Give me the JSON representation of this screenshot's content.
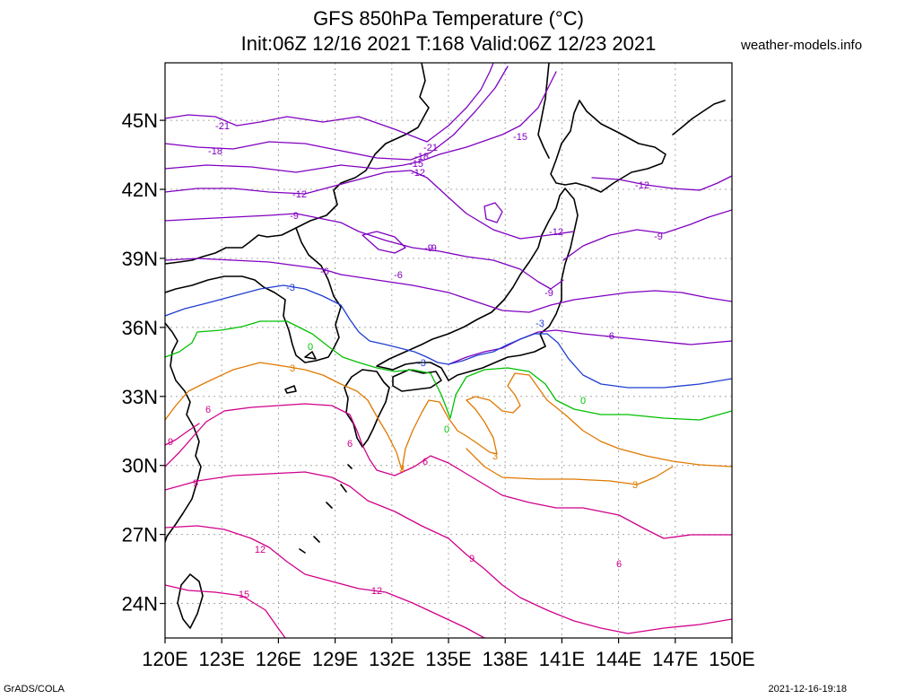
{
  "header": {
    "title_line1": "GFS 850hPa Temperature (°C)",
    "title_line2": "Init:06Z 12/16 2021 T:168 Valid:06Z 12/23 2021",
    "credit": "weather-models.info"
  },
  "footer": {
    "left": "GrADS/COLA",
    "right": "2021-12-16-19:18"
  },
  "map_data": {
    "lon_range": [
      120,
      150
    ],
    "lat_range": [
      22.5,
      47.5
    ],
    "grid": "dotted",
    "x_ticks": [
      "120E",
      "123E",
      "126E",
      "129E",
      "132E",
      "135E",
      "138E",
      "141E",
      "144E",
      "147E",
      "150E"
    ],
    "y_ticks": [
      "45N",
      "42N",
      "39N",
      "36N",
      "33N",
      "30N",
      "27N",
      "24N"
    ],
    "contour_colors": {
      "-21": "#8000c0",
      "-18": "#8000c0",
      "-15": "#8000c0",
      "-12": "#8000c0",
      "-9": "#8000c0",
      "-6": "#8000c0",
      "-3": "#1f3fd0",
      "0": "#00c000",
      "3": "#e07800",
      "6": "#d0008a",
      "9": "#d0008a",
      "12": "#d0008a",
      "15": "#d0008a"
    },
    "contour_labels": [
      {
        "text": "-21",
        "color": "#8000c0"
      },
      {
        "text": "-18",
        "color": "#8000c0"
      },
      {
        "text": "-21",
        "color": "#8000c0"
      },
      {
        "text": "-18",
        "color": "#8000c0"
      },
      {
        "text": "-15",
        "color": "#8000c0"
      },
      {
        "text": "-12",
        "color": "#8000c0"
      },
      {
        "text": "-15",
        "color": "#8000c0"
      },
      {
        "text": "-12",
        "color": "#8000c0"
      },
      {
        "text": "-12",
        "color": "#8000c0"
      },
      {
        "text": "-9",
        "color": "#8000c0"
      },
      {
        "text": "-12",
        "color": "#8000c0"
      },
      {
        "text": "-9",
        "color": "#8000c0"
      },
      {
        "text": "-9",
        "color": "#8000c0"
      },
      {
        "text": "-6",
        "color": "#8000c0"
      },
      {
        "text": "-9",
        "color": "#8000c0"
      },
      {
        "text": "-9",
        "color": "#8000c0"
      },
      {
        "text": "-6",
        "color": "#8000c0"
      },
      {
        "text": "-6",
        "color": "#8000c0"
      },
      {
        "text": "-3",
        "color": "#1f3fd0"
      },
      {
        "text": "-3",
        "color": "#1f3fd0"
      },
      {
        "text": "-3",
        "color": "#1f3fd0"
      },
      {
        "text": "0",
        "color": "#00c000"
      },
      {
        "text": "0",
        "color": "#00c000"
      },
      {
        "text": "0",
        "color": "#00c000"
      },
      {
        "text": "3",
        "color": "#e07800"
      },
      {
        "text": "3",
        "color": "#e07800"
      },
      {
        "text": "3",
        "color": "#e07800"
      },
      {
        "text": "3",
        "color": "#e07800"
      },
      {
        "text": "6",
        "color": "#d0008a"
      },
      {
        "text": "6",
        "color": "#d0008a"
      },
      {
        "text": "6",
        "color": "#d0008a"
      },
      {
        "text": "6",
        "color": "#d0008a"
      },
      {
        "text": "9",
        "color": "#d0008a"
      },
      {
        "text": "9",
        "color": "#d0008a"
      },
      {
        "text": "9",
        "color": "#d0008a"
      },
      {
        "text": "12",
        "color": "#d0008a"
      },
      {
        "text": "12",
        "color": "#d0008a"
      },
      {
        "text": "15",
        "color": "#d0008a"
      }
    ]
  }
}
